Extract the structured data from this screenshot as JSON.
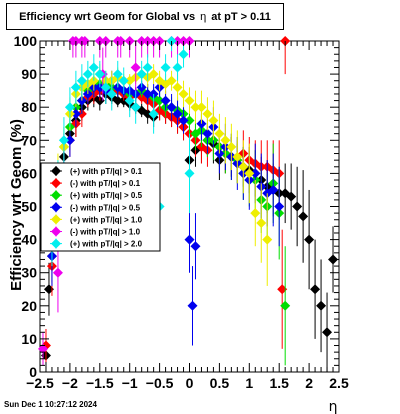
{
  "chart_data": {
    "type": "scatter",
    "title": {
      "prefix": "Efficiency wrt Geom for Global vs",
      "eta_symbol": "η",
      "suffix": "at pT > 0.11"
    },
    "xlabel": "η",
    "ylabel": "Efficiency wrt Geom (%)",
    "xlim": [
      -2.5,
      2.5
    ],
    "ylim": [
      0,
      100
    ],
    "x_ticks": [
      -2.5,
      -2,
      -1.5,
      -1,
      -0.5,
      0,
      0.5,
      1,
      1.5,
      2,
      2.5
    ],
    "x_tick_labels": [
      "−2.5",
      "−2",
      "−1.5",
      "−1",
      "−0.5",
      "0",
      "0.5",
      "1",
      "1.5",
      "2",
      "2.5"
    ],
    "y_ticks": [
      0,
      10,
      20,
      30,
      40,
      50,
      60,
      70,
      80,
      90,
      100
    ],
    "y_tick_labels": [
      "0",
      "10",
      "20",
      "30",
      "40",
      "50",
      "60",
      "70",
      "80",
      "90",
      "100"
    ],
    "grid": false,
    "legend_position": "middle-left",
    "series": [
      {
        "name": "(+) with pT/|q| > 0.1",
        "color": "#000000",
        "x": [
          -2.4,
          -2.35,
          -2.3,
          -2.2,
          -2.1,
          -2.0,
          -1.9,
          -1.8,
          -1.7,
          -1.6,
          -1.5,
          -1.4,
          -1.3,
          -1.2,
          -1.1,
          -1.0,
          -0.9,
          -0.8,
          -0.7,
          -0.6,
          -0.5,
          -0.4,
          -0.3,
          -0.2,
          -0.1,
          0.0,
          0.1,
          0.2,
          0.3,
          0.4,
          0.5,
          0.6,
          0.7,
          0.8,
          0.9,
          1.0,
          1.1,
          1.2,
          1.3,
          1.4,
          1.5,
          1.6,
          1.7,
          1.8,
          1.9,
          2.0,
          2.1,
          2.2,
          2.3,
          2.4
        ],
        "y": [
          5,
          25,
          35,
          55,
          65,
          72,
          76,
          80,
          82,
          83,
          82,
          84,
          83,
          82,
          82,
          81,
          80,
          79,
          78,
          77,
          79,
          78,
          77,
          76,
          74,
          64,
          67,
          68,
          70,
          69,
          64,
          66,
          65,
          63,
          62,
          61,
          60,
          58,
          56,
          55,
          54,
          54,
          53,
          50,
          47,
          40,
          25,
          20,
          12,
          34
        ],
        "yerr": [
          4,
          8,
          8,
          8,
          6,
          5,
          5,
          4,
          3,
          3,
          3,
          3,
          2,
          2,
          2,
          2,
          2,
          2,
          3,
          3,
          3,
          3,
          3,
          4,
          4,
          5,
          5,
          5,
          5,
          6,
          6,
          6,
          6,
          6,
          6,
          7,
          7,
          7,
          8,
          8,
          8,
          9,
          10,
          12,
          14,
          15,
          15,
          14,
          12,
          10
        ]
      },
      {
        "name": "(-) with pT/|q| > 0.1",
        "color": "#ff0000",
        "x": [
          -2.4,
          -2.3,
          -2.2,
          -2.1,
          -2.0,
          -1.9,
          -1.8,
          -1.7,
          -1.6,
          -1.5,
          -1.4,
          -1.3,
          -1.2,
          -1.1,
          -1.0,
          -0.9,
          -0.8,
          -0.7,
          -0.6,
          -0.5,
          -0.4,
          -0.3,
          -0.2,
          -0.1,
          0.0,
          0.1,
          0.2,
          0.3,
          0.4,
          0.5,
          0.6,
          0.7,
          0.8,
          0.9,
          1.0,
          1.1,
          1.2,
          1.3,
          1.4,
          1.5,
          1.55,
          1.6
        ],
        "y": [
          8,
          32,
          50,
          62,
          70,
          75,
          78,
          83,
          84,
          85,
          86,
          85,
          85,
          84,
          83,
          84,
          83,
          82,
          81,
          79,
          78,
          77,
          76,
          74,
          72,
          70,
          68,
          67,
          70,
          68,
          66,
          65,
          64,
          66,
          64,
          63,
          62,
          62,
          61,
          60,
          25,
          100
        ],
        "yerr": [
          5,
          9,
          8,
          6,
          5,
          4,
          4,
          3,
          3,
          3,
          3,
          3,
          2,
          2,
          2,
          2,
          2,
          3,
          3,
          3,
          3,
          3,
          4,
          4,
          4,
          5,
          5,
          5,
          5,
          6,
          6,
          6,
          6,
          7,
          7,
          7,
          8,
          8,
          9,
          10,
          18,
          10
        ]
      },
      {
        "name": "(+) with pT/|q| > 0.5",
        "color": "#00dd00",
        "x": [
          -2.3,
          -2.2,
          -2.1,
          -2.0,
          -1.9,
          -1.8,
          -1.7,
          -1.6,
          -1.5,
          -1.4,
          -1.3,
          -1.2,
          -1.1,
          -1.0,
          -0.9,
          -0.8,
          -0.7,
          -0.6,
          -0.5,
          -0.4,
          -0.3,
          -0.2,
          -0.1,
          0.0,
          0.1,
          0.2,
          0.3,
          0.4,
          0.5,
          0.6,
          0.7,
          0.8,
          0.9,
          1.0,
          1.1,
          1.2,
          1.3,
          1.4,
          1.5,
          1.6
        ],
        "y": [
          40,
          55,
          68,
          74,
          80,
          82,
          85,
          86,
          87,
          87,
          86,
          86,
          85,
          84,
          84,
          85,
          84,
          83,
          82,
          80,
          80,
          79,
          78,
          76,
          72,
          73,
          70,
          70,
          68,
          66,
          65,
          64,
          60,
          58,
          58,
          52,
          50,
          57,
          48,
          20
        ],
        "yerr": [
          9,
          8,
          6,
          5,
          4,
          4,
          3,
          3,
          3,
          3,
          3,
          3,
          2,
          2,
          2,
          2,
          3,
          3,
          3,
          3,
          3,
          4,
          4,
          4,
          5,
          5,
          5,
          6,
          6,
          6,
          7,
          7,
          8,
          8,
          9,
          10,
          10,
          12,
          14,
          18
        ]
      },
      {
        "name": "(-) with pT/|q| > 0.5",
        "color": "#0000ee",
        "x": [
          -2.3,
          -2.2,
          -2.1,
          -2.0,
          -1.9,
          -1.8,
          -1.7,
          -1.6,
          -1.5,
          -1.4,
          -1.3,
          -1.2,
          -1.1,
          -1.0,
          -0.9,
          -0.8,
          -0.7,
          -0.6,
          -0.5,
          -0.4,
          -0.3,
          -0.2,
          -0.1,
          0.0,
          0.05,
          0.1,
          0.2,
          0.3,
          0.4,
          0.5,
          0.6,
          0.7,
          0.8,
          0.9,
          1.0,
          1.1,
          1.2,
          1.3,
          1.4,
          1.5
        ],
        "y": [
          35,
          52,
          62,
          70,
          78,
          82,
          84,
          86,
          86,
          85,
          88,
          86,
          85,
          85,
          84,
          86,
          84,
          84,
          86,
          82,
          80,
          78,
          76,
          40,
          20,
          38,
          75,
          72,
          74,
          66,
          68,
          65,
          63,
          60,
          58,
          60,
          56,
          54,
          55,
          50
        ],
        "yerr": [
          9,
          8,
          6,
          5,
          4,
          4,
          3,
          3,
          3,
          3,
          3,
          3,
          2,
          2,
          2,
          2,
          3,
          3,
          3,
          3,
          4,
          4,
          4,
          10,
          12,
          10,
          5,
          6,
          6,
          6,
          7,
          7,
          8,
          8,
          9,
          9,
          10,
          10,
          11,
          12
        ]
      },
      {
        "name": "(+) with pT/|q| > 1.0",
        "color": "#eeee00",
        "x": [
          -2.3,
          -2.2,
          -2.1,
          -2.0,
          -1.9,
          -1.8,
          -1.7,
          -1.6,
          -1.5,
          -1.4,
          -1.3,
          -1.2,
          -1.1,
          -1.0,
          -0.9,
          -0.8,
          -0.7,
          -0.6,
          -0.5,
          -0.4,
          -0.3,
          -0.2,
          -0.1,
          0.0,
          0.1,
          0.2,
          0.3,
          0.4,
          0.5,
          0.6,
          0.7,
          0.8,
          0.9,
          1.0,
          1.1,
          1.2,
          1.3
        ],
        "y": [
          45,
          58,
          68,
          78,
          84,
          86,
          87,
          88,
          90,
          88,
          88,
          89,
          88,
          88,
          89,
          90,
          89,
          90,
          88,
          87,
          88,
          86,
          84,
          82,
          80,
          80,
          78,
          76,
          72,
          70,
          68,
          65,
          62,
          60,
          48,
          45,
          40
        ],
        "yerr": [
          9,
          8,
          6,
          5,
          4,
          4,
          3,
          3,
          3,
          3,
          3,
          3,
          2,
          2,
          2,
          2,
          3,
          3,
          3,
          3,
          3,
          4,
          4,
          4,
          5,
          5,
          5,
          6,
          6,
          7,
          7,
          8,
          8,
          9,
          10,
          12,
          14
        ]
      },
      {
        "name": "(-) with pT/|q| > 1.0",
        "color": "#ee00ee",
        "x": [
          -2.45,
          -2.2,
          -2.1,
          -1.95,
          -1.9,
          -1.8,
          -1.75,
          -1.5,
          -1.45,
          -1.4,
          -1.2,
          -1.15,
          -1.0,
          -0.9,
          -0.8,
          -0.7,
          -0.6,
          -0.5,
          -0.3,
          -0.2,
          -0.1,
          0.0
        ],
        "y": [
          7,
          30,
          62,
          100,
          100,
          100,
          100,
          100,
          90,
          100,
          100,
          100,
          100,
          92,
          100,
          100,
          100,
          100,
          100,
          100,
          100,
          100
        ],
        "yerr": [
          5,
          12,
          10,
          5,
          5,
          5,
          5,
          5,
          8,
          5,
          5,
          5,
          5,
          8,
          5,
          5,
          5,
          5,
          5,
          5,
          5,
          5
        ]
      },
      {
        "name": "(+) with pT/|q| > 2.0",
        "color": "#00eeee",
        "x": [
          -2.3,
          -2.2,
          -2.1,
          -2.0,
          -1.9,
          -1.8,
          -1.7,
          -1.6,
          -1.5,
          -1.4,
          -1.3,
          -1.2,
          -1.1,
          -1.0,
          -0.9,
          -0.8,
          -0.7,
          -0.6,
          -0.5,
          -0.4,
          -0.3,
          -0.2,
          -0.1,
          0.0
        ],
        "y": [
          42,
          55,
          70,
          80,
          86,
          88,
          90,
          92,
          90,
          86,
          84,
          90,
          88,
          82,
          80,
          90,
          92,
          78,
          50,
          92,
          100,
          92,
          96,
          60
        ],
        "yerr": [
          10,
          9,
          7,
          6,
          5,
          5,
          4,
          4,
          4,
          5,
          5,
          4,
          4,
          5,
          5,
          4,
          4,
          6,
          12,
          4,
          3,
          4,
          4,
          12
        ]
      }
    ]
  },
  "footer": {
    "timestamp": "Sun Dec  1 10:27:12 2024"
  }
}
